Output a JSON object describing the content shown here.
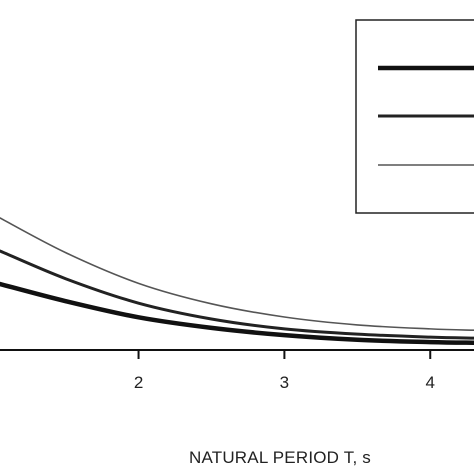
{
  "chart_data": {
    "type": "line",
    "xlabel": "NATURAL PERIOD T, s",
    "ylabel": "",
    "title": "",
    "xlim": [
      1.05,
      4.3
    ],
    "ylim": [
      0,
      1
    ],
    "x_ticks": [
      {
        "value": 2,
        "label": "2"
      },
      {
        "value": 3,
        "label": "3"
      },
      {
        "value": 4,
        "label": "4"
      }
    ],
    "grid": false,
    "legend": {
      "placement": "top-right",
      "entries": [
        {
          "label": "",
          "line": "thickest"
        },
        {
          "label": "",
          "line": "medium"
        },
        {
          "label": "",
          "line": "thin"
        }
      ]
    },
    "series": [
      {
        "style": "thickest",
        "color": "#111111",
        "x": [
          1.05,
          1.5,
          2.0,
          2.5,
          3.0,
          3.5,
          4.0,
          4.3
        ],
        "y": [
          0.2,
          0.148,
          0.099,
          0.067,
          0.045,
          0.031,
          0.024,
          0.022
        ]
      },
      {
        "style": "medium",
        "color": "#222222",
        "x": [
          1.05,
          1.5,
          2.0,
          2.5,
          3.0,
          3.5,
          4.0,
          4.3
        ],
        "y": [
          0.3,
          0.216,
          0.142,
          0.094,
          0.064,
          0.048,
          0.039,
          0.036
        ]
      },
      {
        "style": "thin",
        "color": "#555555",
        "x": [
          1.05,
          1.5,
          2.0,
          2.5,
          3.0,
          3.5,
          4.0,
          4.3
        ],
        "y": [
          0.4,
          0.295,
          0.202,
          0.14,
          0.1,
          0.076,
          0.064,
          0.06
        ]
      }
    ]
  }
}
